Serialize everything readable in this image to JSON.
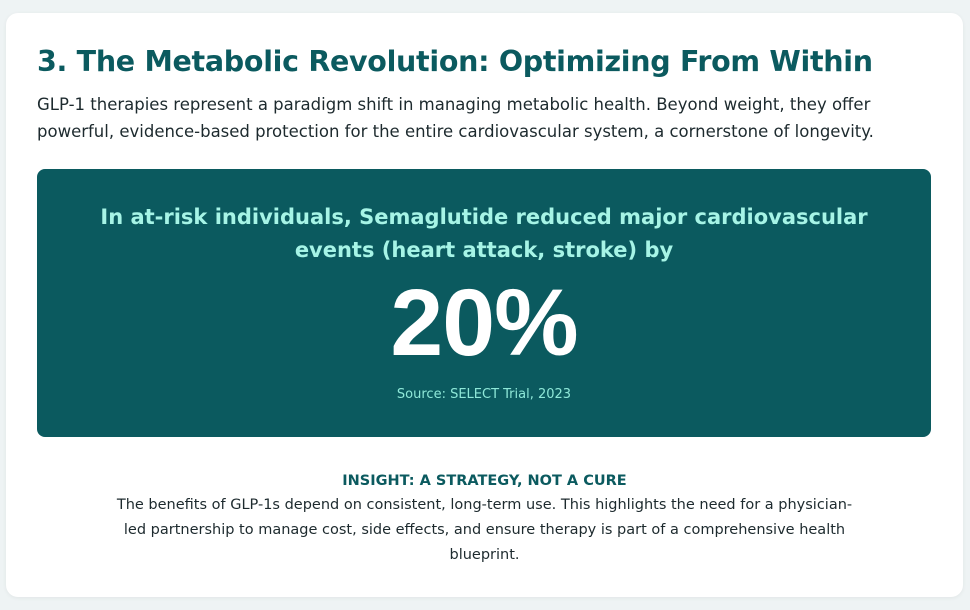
{
  "section": {
    "title": "3. The Metabolic Revolution: Optimizing From Within",
    "intro": "GLP-1 therapies represent a paradigm shift in managing metabolic health. Beyond weight, they offer powerful, evidence-based protection for the entire cardiovascular system, a cornerstone of longevity."
  },
  "stat": {
    "headline": "In at-risk individuals, Semaglutide reduced major cardiovascular events (heart attack, stroke) by",
    "value": "20%",
    "source": "Source: SELECT Trial, 2023"
  },
  "insight": {
    "title": "INSIGHT: A STRATEGY, NOT A CURE",
    "body": "The benefits of GLP-1s depend on consistent, long-term use. This highlights the need for a physician-led partnership to manage cost, side effects, and ensure therapy is part of a comprehensive health blueprint."
  },
  "colors": {
    "accent": "#0b5a5f",
    "highlight": "#a6f4e6",
    "background": "#eef3f4"
  }
}
